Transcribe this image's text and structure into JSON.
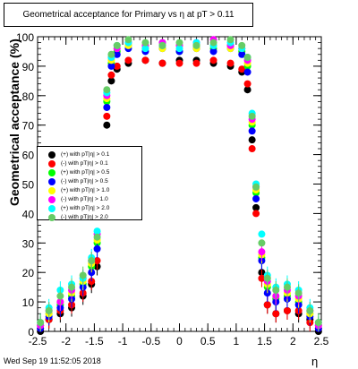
{
  "title": "Geometrical acceptance for Primary vs    η at pT > 0.11",
  "footer": "Wed Sep 19 11:52:05 2018",
  "chart_data": {
    "type": "scatter",
    "xlabel": "η",
    "ylabel": "Geometrical acceptance (%)",
    "xlim": [
      -2.5,
      2.5
    ],
    "ylim": [
      0,
      100
    ],
    "x_ticks": [
      "-2.5",
      "-2",
      "-1.5",
      "-1",
      "-0.5",
      "0",
      "0.5",
      "1",
      "1.5",
      "2",
      "2.5"
    ],
    "y_ticks": [
      "0",
      "10",
      "20",
      "30",
      "40",
      "50",
      "60",
      "70",
      "80",
      "90",
      "100"
    ],
    "legend_position": "left-middle",
    "series": [
      {
        "name": "(+) with pT|η| > 0.1",
        "color": "#000000",
        "x": [
          -2.45,
          -2.3,
          -2.1,
          -1.9,
          -1.7,
          -1.55,
          -1.45,
          -1.35,
          -1.28,
          -1.2,
          -1.1,
          -0.9,
          -0.6,
          -0.3,
          0,
          0.3,
          0.6,
          0.9,
          1.1,
          1.2,
          1.28,
          1.35,
          1.45,
          1.55,
          1.7,
          1.9,
          2.1,
          2.3,
          2.45
        ],
        "y": [
          0,
          4,
          6,
          8,
          12,
          16,
          22,
          45,
          70,
          85,
          89,
          91,
          92,
          91,
          92,
          92,
          91,
          90,
          88,
          82,
          65,
          42,
          20,
          9,
          6,
          7,
          6,
          4,
          0
        ]
      },
      {
        "name": "(-) with pT|η| > 0.1",
        "color": "#ff0000",
        "x": [
          -2.45,
          -2.3,
          -2.1,
          -1.9,
          -1.7,
          -1.55,
          -1.45,
          -1.35,
          -1.28,
          -1.2,
          -1.1,
          -0.9,
          -0.6,
          -0.3,
          0,
          0.3,
          0.6,
          0.9,
          1.1,
          1.2,
          1.28,
          1.35,
          1.45,
          1.55,
          1.7,
          1.9,
          2.1,
          2.3,
          2.45
        ],
        "y": [
          1,
          4,
          7,
          9,
          13,
          17,
          24,
          48,
          73,
          87,
          90,
          92,
          92,
          91,
          91,
          91,
          92,
          91,
          89,
          84,
          62,
          40,
          18,
          9,
          6,
          7,
          7,
          3,
          1
        ]
      },
      {
        "name": "(+) with pT|η| > 0.5",
        "color": "#00ff00",
        "x": [
          -2.45,
          -2.3,
          -2.1,
          -1.9,
          -1.7,
          -1.55,
          -1.45,
          -1.35,
          -1.28,
          -1.2,
          -1.1,
          -0.9,
          -0.6,
          -0.3,
          0,
          0.3,
          0.6,
          0.9,
          1.1,
          1.2,
          1.28,
          1.35,
          1.45,
          1.55,
          1.7,
          1.9,
          2.1,
          2.3,
          2.45
        ],
        "y": [
          2,
          6,
          9,
          12,
          16,
          22,
          30,
          55,
          78,
          91,
          95,
          97,
          96,
          98,
          95,
          97,
          96,
          97,
          95,
          90,
          70,
          47,
          25,
          15,
          11,
          12,
          10,
          6,
          2
        ]
      },
      {
        "name": "(-) with pT|η| > 0.5",
        "color": "#0000ff",
        "x": [
          -2.45,
          -2.3,
          -2.1,
          -1.9,
          -1.7,
          -1.55,
          -1.45,
          -1.35,
          -1.28,
          -1.2,
          -1.1,
          -0.9,
          -0.6,
          -0.3,
          0,
          0.3,
          0.6,
          0.9,
          1.1,
          1.2,
          1.28,
          1.35,
          1.45,
          1.55,
          1.7,
          1.9,
          2.1,
          2.3,
          2.45
        ],
        "y": [
          1,
          5,
          8,
          11,
          15,
          20,
          28,
          52,
          76,
          90,
          94,
          96,
          95,
          96,
          95,
          96,
          95,
          96,
          94,
          88,
          68,
          45,
          24,
          13,
          10,
          11,
          9,
          5,
          1
        ]
      },
      {
        "name": "(+) with pT|η| > 1.0",
        "color": "#ffff00",
        "x": [
          -2.45,
          -2.3,
          -2.1,
          -1.9,
          -1.7,
          -1.55,
          -1.45,
          -1.35,
          -1.28,
          -1.2,
          -1.1,
          -0.9,
          -0.6,
          -0.3,
          0,
          0.3,
          0.6,
          0.9,
          1.1,
          1.2,
          1.28,
          1.35,
          1.45,
          1.55,
          1.7,
          1.9,
          2.1,
          2.3,
          2.45
        ],
        "y": [
          2,
          6,
          10,
          13,
          17,
          23,
          31,
          56,
          79,
          92,
          96,
          97,
          97,
          96,
          97,
          96,
          97,
          96,
          96,
          91,
          71,
          48,
          26,
          16,
          12,
          13,
          11,
          6,
          2
        ]
      },
      {
        "name": "(-) with pT|η| > 1.0",
        "color": "#ff00ff",
        "x": [
          -2.45,
          -2.3,
          -2.1,
          -1.9,
          -1.7,
          -1.55,
          -1.45,
          -1.35,
          -1.28,
          -1.2,
          -1.1,
          -0.9,
          -0.6,
          -0.3,
          0,
          0.3,
          0.6,
          0.9,
          1.1,
          1.2,
          1.28,
          1.35,
          1.45,
          1.55,
          1.7,
          1.9,
          2.1,
          2.3,
          2.45
        ],
        "y": [
          2,
          7,
          10,
          14,
          18,
          24,
          33,
          58,
          80,
          93,
          96,
          98,
          97,
          98,
          97,
          98,
          99,
          97,
          96,
          92,
          72,
          49,
          27,
          17,
          12,
          14,
          12,
          7,
          2
        ]
      },
      {
        "name": "(+) with pT|η| > 2.0",
        "color": "#00ffff",
        "x": [
          -2.45,
          -2.3,
          -2.1,
          -1.9,
          -1.7,
          -1.55,
          -1.45,
          -1.35,
          -1.28,
          -1.2,
          -1.1,
          -0.9,
          -0.6,
          -0.3,
          0,
          0.3,
          0.6,
          0.9,
          1.1,
          1.2,
          1.28,
          1.35,
          1.45,
          1.55,
          1.7,
          1.9,
          2.1,
          2.3,
          2.45
        ],
        "y": [
          3,
          8,
          14,
          16,
          18,
          25,
          34,
          60,
          81,
          93,
          97,
          98,
          96,
          97,
          96,
          98,
          97,
          98,
          96,
          93,
          74,
          50,
          33,
          19,
          15,
          16,
          14,
          8,
          3
        ]
      },
      {
        "name": "(-) with pT|η| > 2.0",
        "color": "#66cc66",
        "x": [
          -2.45,
          -2.3,
          -2.1,
          -1.9,
          -1.7,
          -1.55,
          -1.45,
          -1.35,
          -1.28,
          -1.2,
          -1.1,
          -0.9,
          -0.6,
          -0.3,
          0,
          0.3,
          0.6,
          0.9,
          1.1,
          1.2,
          1.28,
          1.35,
          1.45,
          1.55,
          1.7,
          1.9,
          2.1,
          2.3,
          2.45
        ],
        "y": [
          3,
          7,
          12,
          15,
          19,
          24,
          32,
          59,
          82,
          94,
          97,
          99,
          98,
          97,
          98,
          97,
          98,
          99,
          97,
          93,
          73,
          49,
          30,
          18,
          14,
          15,
          13,
          7,
          3
        ]
      }
    ]
  }
}
